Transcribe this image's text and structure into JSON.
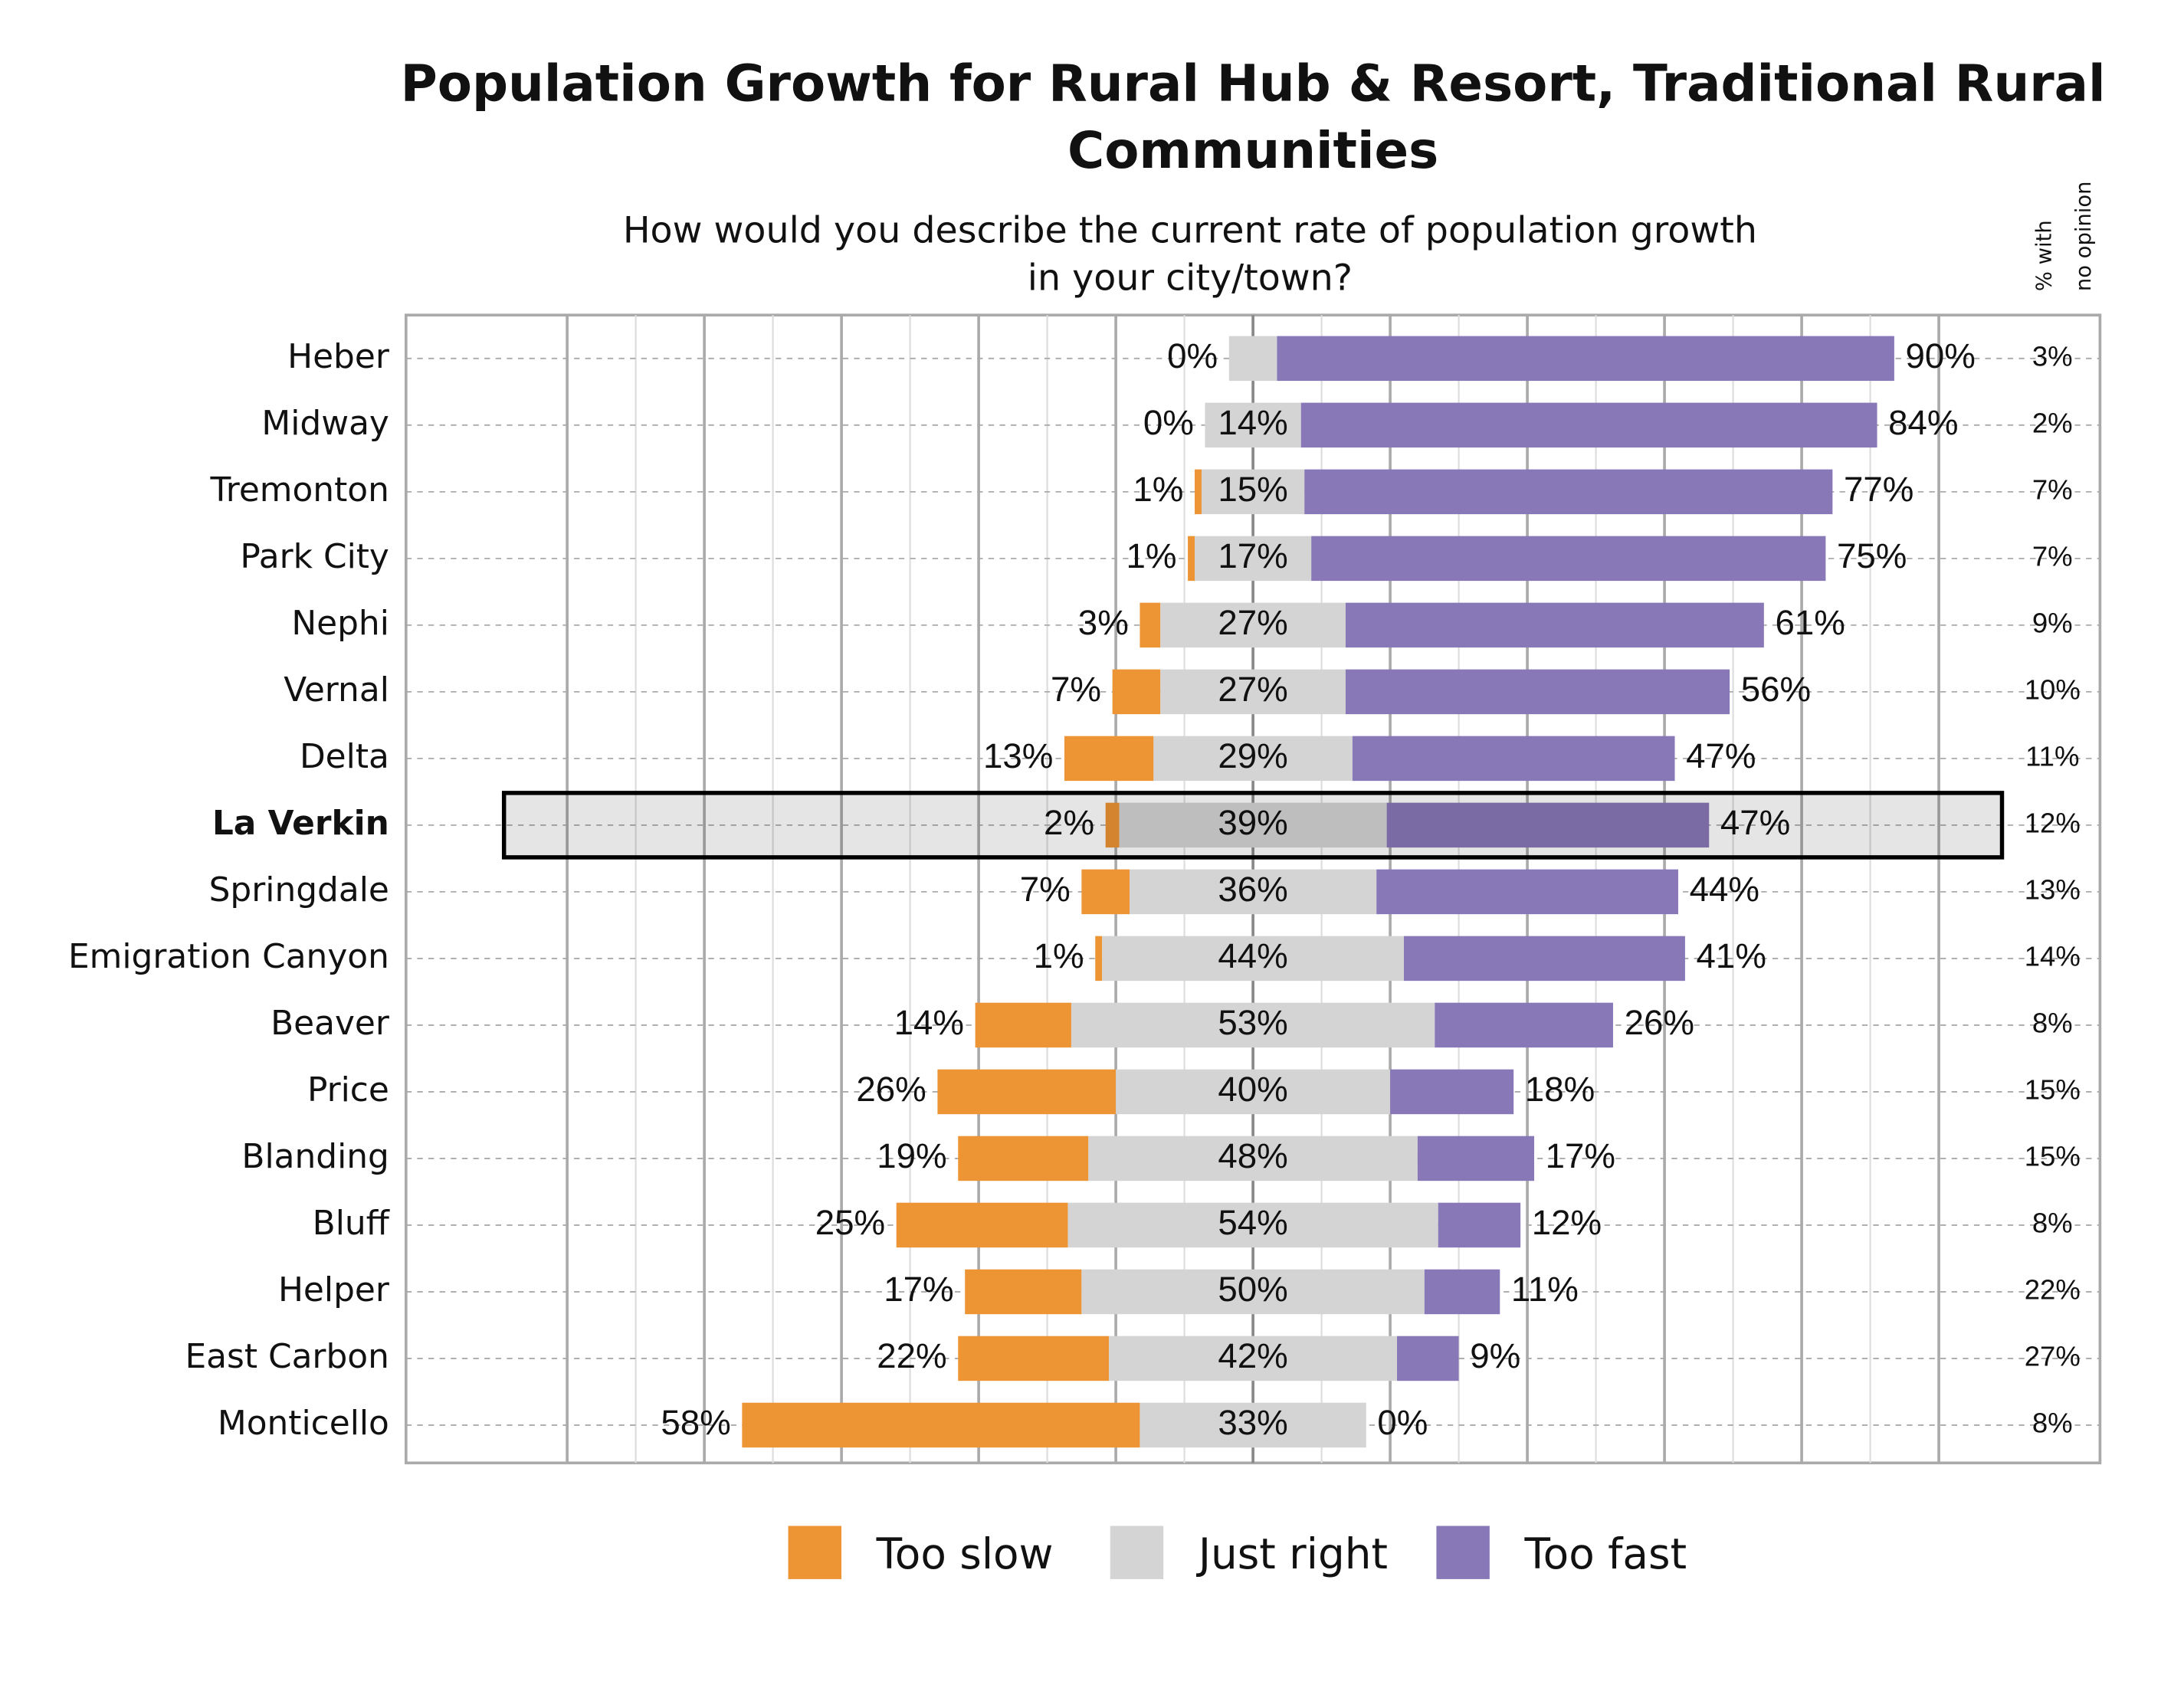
{
  "chart_data": {
    "type": "diverging-bar",
    "title": [
      "Population Growth for Rural Hub & Resort, Traditional Rural",
      "Communities"
    ],
    "subtitle": [
      "How would you describe the current rate of population growth",
      "in your city/town?"
    ],
    "categories": [
      "Heber",
      "Midway",
      "Tremonton",
      "Park City",
      "Nephi",
      "Vernal",
      "Delta",
      "La Verkin",
      "Springdale",
      "Emigration Canyon",
      "Beaver",
      "Price",
      "Blanding",
      "Bluff",
      "Helper",
      "East Carbon",
      "Monticello"
    ],
    "highlight": 7,
    "xlim": [
      -123.5,
      123.5
    ],
    "grid_x": [
      -100,
      -90,
      -80,
      -70,
      -60,
      -50,
      -40,
      -30,
      -20,
      -10,
      0,
      10,
      20,
      30,
      40,
      50,
      60,
      70,
      80,
      90,
      100
    ],
    "series": [
      {
        "name": "Too slow",
        "color": "#ED9435",
        "values": [
          0,
          0,
          1,
          1,
          3,
          7,
          13,
          2,
          7,
          1,
          14,
          26,
          19,
          25,
          17,
          22,
          58
        ],
        "value_labels": [
          "0%",
          "0%",
          "1%",
          "1%",
          "3%",
          "7%",
          "13%",
          "2%",
          "7%",
          "1%",
          "14%",
          "26%",
          "19%",
          "25%",
          "17%",
          "22%",
          "58%"
        ]
      },
      {
        "name": "Just right",
        "color": "#D4D4D4",
        "values": [
          7,
          14,
          15,
          17,
          27,
          27,
          29,
          39,
          36,
          44,
          53,
          40,
          48,
          54,
          50,
          42,
          33
        ],
        "value_labels": [
          null,
          "14%",
          "15%",
          "17%",
          "27%",
          "27%",
          "29%",
          "39%",
          "36%",
          "44%",
          "53%",
          "40%",
          "48%",
          "54%",
          "50%",
          "42%",
          "33%"
        ]
      },
      {
        "name": "Too fast",
        "color": "#8878B8",
        "values": [
          90,
          84,
          77,
          75,
          61,
          56,
          47,
          47,
          44,
          41,
          26,
          18,
          17,
          12,
          11,
          9,
          0
        ],
        "value_labels": [
          "90%",
          "84%",
          "77%",
          "75%",
          "61%",
          "56%",
          "47%",
          "47%",
          "44%",
          "41%",
          "26%",
          "18%",
          "17%",
          "12%",
          "11%",
          "9%",
          "0%"
        ]
      }
    ],
    "no_opinion": {
      "title": [
        "% with",
        "no opinion"
      ],
      "values": [
        3,
        2,
        7,
        7,
        9,
        10,
        11,
        12,
        13,
        14,
        8,
        15,
        15,
        8,
        22,
        27,
        8
      ],
      "value_labels": [
        "3%",
        "2%",
        "7%",
        "7%",
        "9%",
        "10%",
        "11%",
        "12%",
        "13%",
        "14%",
        "8%",
        "15%",
        "15%",
        "8%",
        "22%",
        "27%",
        "8%"
      ]
    }
  }
}
